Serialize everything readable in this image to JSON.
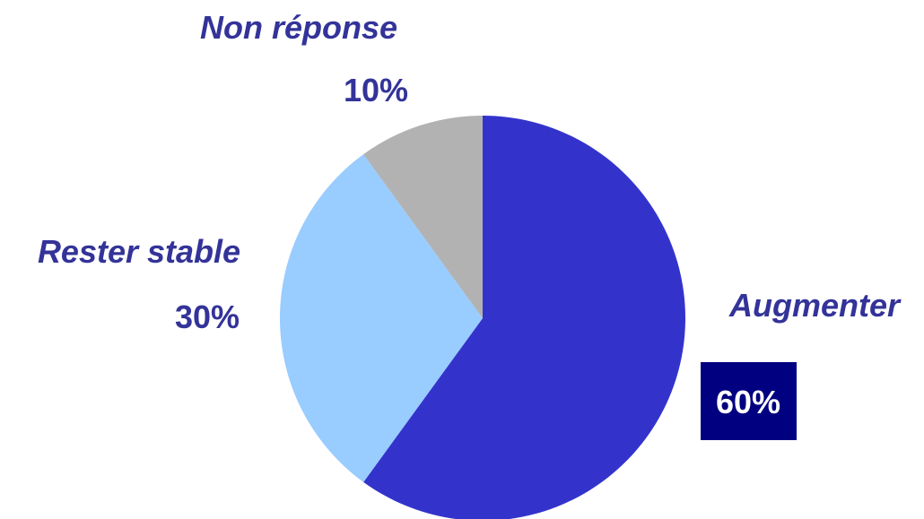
{
  "chart_data": {
    "type": "pie",
    "categories": [
      "Augmenter",
      "Non réponse",
      "Rester stable"
    ],
    "values": [
      60,
      10,
      30
    ],
    "value_labels": [
      "60%",
      "10%",
      "30%"
    ],
    "colors": [
      "#3333CC",
      "#B2B2B2",
      "#99CCFF"
    ],
    "label_color": "#333399",
    "highlight_box_color": "#000080",
    "highlight_text_color": "#ffffff",
    "start": "12 o'clock",
    "direction": "clockwise"
  }
}
